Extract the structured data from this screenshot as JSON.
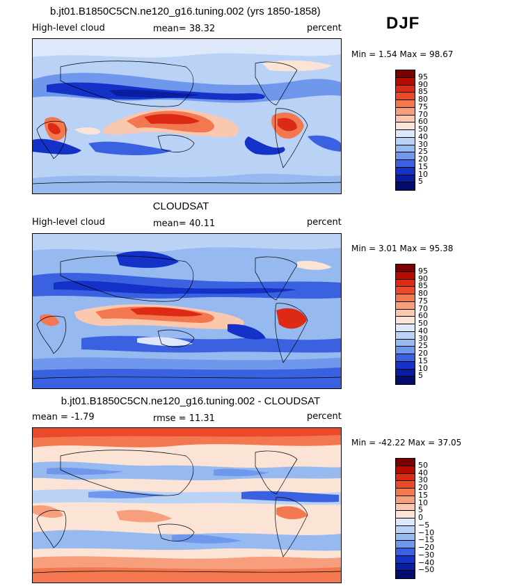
{
  "season": "DJF",
  "panels": [
    {
      "title": "b.jt01.B1850C5CN.ne120_g16.tuning.002 (yrs 1850-1858)",
      "left_label": "High-level cloud",
      "center_label": "mean=  38.32",
      "units": "percent",
      "minmax": "Min =    1.54  Max =   98.67",
      "colorbar_labels": [
        "95",
        "90",
        "85",
        "80",
        "75",
        "70",
        "60",
        "50",
        "40",
        "30",
        "25",
        "20",
        "15",
        "10",
        "5"
      ]
    },
    {
      "title": "CLOUDSAT",
      "left_label": "High-level cloud",
      "center_label": "mean=  40.11",
      "units": "percent",
      "minmax": "Min =    3.01  Max =   95.38",
      "colorbar_labels": [
        "95",
        "90",
        "85",
        "80",
        "75",
        "70",
        "60",
        "50",
        "40",
        "30",
        "25",
        "20",
        "15",
        "10",
        "5"
      ]
    },
    {
      "title": "b.jt01.B1850C5CN.ne120_g16.tuning.002 - CLOUDSAT",
      "left_label": "mean =   -1.79",
      "center_label": "rmse =   11.31",
      "units": "percent",
      "minmax": "Min =  -42.22  Max =   37.05",
      "colorbar_labels": [
        "50",
        "40",
        "30",
        "20",
        "15",
        "10",
        "5",
        "0",
        "−5",
        "−10",
        "−15",
        "−20",
        "−30",
        "−40",
        "−50"
      ]
    }
  ],
  "colors": {
    "scale": [
      "#7a0000",
      "#b40c00",
      "#dc2a14",
      "#ea4a2a",
      "#f3774f",
      "#f79e7c",
      "#fac7af",
      "#fbe3d6",
      "#dde9fa",
      "#b9d2f6",
      "#96b9f0",
      "#6f98ec",
      "#3a62e0",
      "#1431c8",
      "#0a1da0",
      "#060b6e"
    ]
  }
}
